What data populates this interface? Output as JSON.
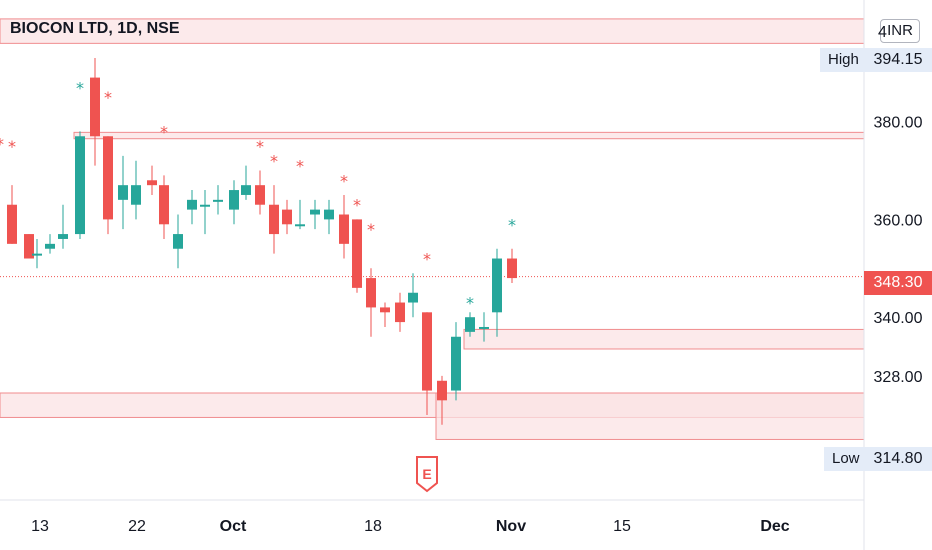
{
  "header": {
    "title": "BIOCON LTD, 1D, NSE",
    "unit": "INR"
  },
  "markers": {
    "earnings_label": "E"
  },
  "price_panel": {
    "high_label": "High",
    "high_value": "394.15",
    "low_label": "Low",
    "low_value": "314.80",
    "last_value": "348.30",
    "last_price": 348.3,
    "top_cut_label": "4"
  },
  "colors": {
    "up": "#26a69a",
    "down": "#ef5350",
    "zone_fill": "#fbe3e4",
    "zone_border": "#f08c8e",
    "axis_text": "#131722"
  },
  "chart_data": {
    "type": "candlestick",
    "title": "BIOCON LTD, 1D, NSE",
    "ylim": [
      300,
      402
    ],
    "y_ticks": [
      328,
      340,
      360,
      380
    ],
    "y_tick_labels": [
      "328.00",
      "340.00",
      "360.00",
      "380.00"
    ],
    "x_ticks": [
      {
        "label": "13",
        "i": 1
      },
      {
        "label": "22",
        "i": 7
      },
      {
        "label": "Oct",
        "i": 12
      },
      {
        "label": "18",
        "i": 19
      },
      {
        "label": "Nov",
        "i": 26
      },
      {
        "label": "15",
        "i": 32
      },
      {
        "label": "Dec",
        "i": 40
      }
    ],
    "candles": [
      {
        "o": 363,
        "h": 367,
        "l": 355,
        "c": 355
      },
      {
        "o": 357,
        "h": 357,
        "l": 352,
        "c": 352
      },
      {
        "o": 353,
        "h": 356,
        "l": 350,
        "c": 353
      },
      {
        "o": 354,
        "h": 357,
        "l": 353,
        "c": 355
      },
      {
        "o": 356,
        "h": 363,
        "l": 354,
        "c": 357
      },
      {
        "o": 357,
        "h": 378,
        "l": 356,
        "c": 377
      },
      {
        "o": 389,
        "h": 393,
        "l": 371,
        "c": 377
      },
      {
        "o": 377,
        "h": 377,
        "l": 357,
        "c": 360
      },
      {
        "o": 364,
        "h": 373,
        "l": 358,
        "c": 367
      },
      {
        "o": 363,
        "h": 372,
        "l": 360,
        "c": 367
      },
      {
        "o": 368,
        "h": 371,
        "l": 365,
        "c": 367
      },
      {
        "o": 367,
        "h": 369,
        "l": 356,
        "c": 359
      },
      {
        "o": 354,
        "h": 361,
        "l": 350,
        "c": 357
      },
      {
        "o": 362,
        "h": 366,
        "l": 359,
        "c": 364
      },
      {
        "o": 363,
        "h": 366,
        "l": 357,
        "c": 363
      },
      {
        "o": 364,
        "h": 367,
        "l": 361,
        "c": 364
      },
      {
        "o": 362,
        "h": 368,
        "l": 359,
        "c": 366
      },
      {
        "o": 365,
        "h": 371,
        "l": 364,
        "c": 367
      },
      {
        "o": 367,
        "h": 370,
        "l": 361,
        "c": 363
      },
      {
        "o": 363,
        "h": 367,
        "l": 353,
        "c": 357
      },
      {
        "o": 362,
        "h": 364,
        "l": 357,
        "c": 359
      },
      {
        "o": 359,
        "h": 364,
        "l": 358,
        "c": 359
      },
      {
        "o": 361,
        "h": 364,
        "l": 358,
        "c": 362
      },
      {
        "o": 360,
        "h": 364,
        "l": 357,
        "c": 362
      },
      {
        "o": 361,
        "h": 365,
        "l": 352,
        "c": 355
      },
      {
        "o": 360,
        "h": 360,
        "l": 345,
        "c": 346
      },
      {
        "o": 348,
        "h": 350,
        "l": 336,
        "c": 342
      },
      {
        "o": 342,
        "h": 343,
        "l": 338,
        "c": 341
      },
      {
        "o": 343,
        "h": 345,
        "l": 337,
        "c": 339
      },
      {
        "o": 343,
        "h": 349,
        "l": 340,
        "c": 345
      },
      {
        "o": 341,
        "h": 341,
        "l": 320,
        "c": 325
      },
      {
        "o": 327,
        "h": 328,
        "l": 318,
        "c": 323
      },
      {
        "o": 325,
        "h": 339,
        "l": 323,
        "c": 336
      },
      {
        "o": 337,
        "h": 341,
        "l": 336,
        "c": 340
      },
      {
        "o": 338,
        "h": 341,
        "l": 335,
        "c": 338
      },
      {
        "o": 341,
        "h": 354,
        "l": 336,
        "c": 352
      },
      {
        "o": 352,
        "h": 354,
        "l": 347,
        "c": 348
      }
    ],
    "candle_x": [
      12,
      29,
      37,
      50,
      63,
      80,
      95,
      108,
      123,
      136,
      152,
      164,
      178,
      192,
      205,
      218,
      234,
      246,
      260,
      274,
      287,
      300,
      315,
      329,
      344,
      357,
      371,
      385,
      400,
      413,
      427,
      442,
      456,
      470,
      484,
      497,
      512
    ],
    "star_markers": [
      {
        "i": 0,
        "price": 375,
        "color": "down"
      },
      {
        "i": 0,
        "price": 375.5,
        "color": "down",
        "xo": -12
      },
      {
        "i": 5,
        "price": 387,
        "color": "up"
      },
      {
        "i": 7,
        "price": 385,
        "color": "down"
      },
      {
        "i": 11,
        "price": 378,
        "color": "down"
      },
      {
        "i": 18,
        "price": 375,
        "color": "down"
      },
      {
        "i": 19,
        "price": 372,
        "color": "down"
      },
      {
        "i": 21,
        "price": 371,
        "color": "down"
      },
      {
        "i": 24,
        "price": 368,
        "color": "down"
      },
      {
        "i": 25,
        "price": 363,
        "color": "down"
      },
      {
        "i": 26,
        "price": 358,
        "color": "down"
      },
      {
        "i": 30,
        "price": 352,
        "color": "down"
      },
      {
        "i": 33,
        "price": 343,
        "color": "up"
      },
      {
        "i": 36,
        "price": 359,
        "color": "up"
      }
    ],
    "zones": [
      {
        "y1": 396,
        "y2": 401,
        "x_start_i": -1
      },
      {
        "y1": 376.5,
        "y2": 377.8,
        "x_start_i": 5
      },
      {
        "y1": 333.5,
        "y2": 337.5,
        "x_start_i": 33
      },
      {
        "y1": 319.5,
        "y2": 324.5,
        "x_start_i": -1
      },
      {
        "y1": 315,
        "y2": 324.5,
        "x_start_i": 31
      }
    ]
  }
}
